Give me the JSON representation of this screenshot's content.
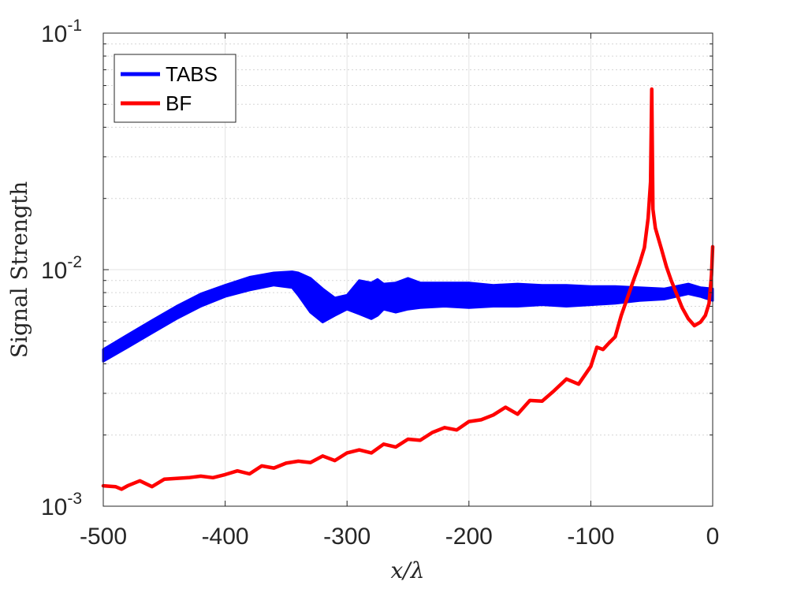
{
  "chart_data": {
    "type": "line",
    "title": "",
    "xlabel": "x/λ",
    "ylabel": "Signal Strength",
    "xlim": [
      -500,
      0
    ],
    "ylim": [
      0.001,
      0.1
    ],
    "yscale": "log",
    "grid": true,
    "legend_position": "top-left",
    "x_ticks": [
      {
        "value": -500,
        "label": "-500"
      },
      {
        "value": -400,
        "label": "-400"
      },
      {
        "value": -300,
        "label": "-300"
      },
      {
        "value": -200,
        "label": "-200"
      },
      {
        "value": -100,
        "label": "-100"
      },
      {
        "value": 0,
        "label": "0"
      }
    ],
    "y_ticks": [
      {
        "value": 0.001,
        "base": "10",
        "exp": "-3"
      },
      {
        "value": 0.01,
        "base": "10",
        "exp": "-2"
      },
      {
        "value": 0.1,
        "base": "10",
        "exp": "-1"
      }
    ],
    "series": [
      {
        "name": "TABS",
        "color": "#0000ff",
        "band": true,
        "x": [
          -500,
          -480,
          -460,
          -440,
          -420,
          -400,
          -380,
          -360,
          -345,
          -340,
          -330,
          -320,
          -310,
          -300,
          -290,
          -280,
          -275,
          -270,
          -260,
          -250,
          -240,
          -220,
          -200,
          -180,
          -160,
          -140,
          -120,
          -100,
          -80,
          -60,
          -40,
          -20,
          -10,
          0
        ],
        "upper": [
          0.0046,
          0.0053,
          0.0061,
          0.007,
          0.0079,
          0.0086,
          0.0093,
          0.0097,
          0.0098,
          0.0097,
          0.0092,
          0.0083,
          0.0076,
          0.0078,
          0.009,
          0.0088,
          0.0091,
          0.0087,
          0.0088,
          0.0092,
          0.0088,
          0.0088,
          0.0088,
          0.0086,
          0.0087,
          0.0086,
          0.0086,
          0.0085,
          0.0085,
          0.0084,
          0.0083,
          0.0087,
          0.0084,
          0.0083
        ],
        "lower": [
          0.0041,
          0.0047,
          0.0054,
          0.0062,
          0.007,
          0.0077,
          0.0082,
          0.0086,
          0.0084,
          0.0078,
          0.0066,
          0.006,
          0.0064,
          0.0068,
          0.0065,
          0.0062,
          0.0064,
          0.0068,
          0.0066,
          0.0068,
          0.0069,
          0.007,
          0.0069,
          0.007,
          0.007,
          0.0071,
          0.007,
          0.0071,
          0.0072,
          0.0074,
          0.0075,
          0.0079,
          0.0077,
          0.0074
        ]
      },
      {
        "name": "BF",
        "color": "#ff0000",
        "x": [
          -500,
          -490,
          -485,
          -480,
          -470,
          -460,
          -450,
          -440,
          -430,
          -420,
          -410,
          -400,
          -390,
          -380,
          -370,
          -360,
          -350,
          -340,
          -330,
          -320,
          -310,
          -300,
          -290,
          -280,
          -270,
          -260,
          -250,
          -240,
          -230,
          -220,
          -210,
          -200,
          -190,
          -180,
          -170,
          -160,
          -150,
          -140,
          -130,
          -120,
          -110,
          -100,
          -95,
          -90,
          -85,
          -80,
          -75,
          -70,
          -65,
          -60,
          -56,
          -53,
          -51,
          -50,
          -49,
          -47,
          -45,
          -42,
          -38,
          -34,
          -30,
          -25,
          -20,
          -15,
          -10,
          -6,
          -3,
          -1,
          0
        ],
        "y": [
          0.00122,
          0.00121,
          0.00118,
          0.00122,
          0.00128,
          0.00121,
          0.0013,
          0.00131,
          0.00132,
          0.00134,
          0.00132,
          0.00136,
          0.00141,
          0.00137,
          0.00148,
          0.00145,
          0.00152,
          0.00155,
          0.00153,
          0.00163,
          0.00156,
          0.00168,
          0.00173,
          0.00168,
          0.00183,
          0.00178,
          0.00192,
          0.0019,
          0.00205,
          0.00215,
          0.0021,
          0.00228,
          0.00232,
          0.00243,
          0.00262,
          0.00245,
          0.0028,
          0.00278,
          0.00308,
          0.00345,
          0.00328,
          0.0039,
          0.0047,
          0.0046,
          0.0049,
          0.0052,
          0.0064,
          0.0076,
          0.009,
          0.0106,
          0.0124,
          0.0165,
          0.0235,
          0.058,
          0.018,
          0.015,
          0.0138,
          0.0122,
          0.0103,
          0.009,
          0.008,
          0.0069,
          0.0062,
          0.0058,
          0.006,
          0.0064,
          0.0072,
          0.0095,
          0.0125
        ]
      }
    ]
  }
}
